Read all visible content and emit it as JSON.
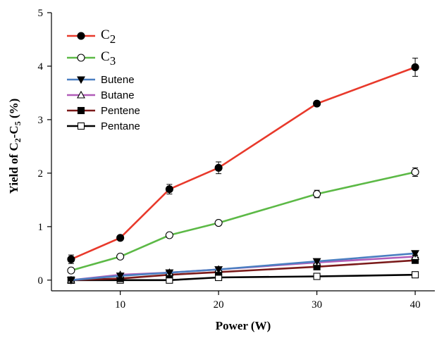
{
  "chart_data": {
    "type": "line",
    "xlabel": "Power (W)",
    "ylabel_parts": [
      "Yield of C",
      "2",
      "-C",
      "5",
      " (%)"
    ],
    "xlim": [
      3,
      42
    ],
    "ylim": [
      -0.2,
      5
    ],
    "xticks": [
      10,
      20,
      30,
      40
    ],
    "yticks": [
      0,
      1,
      2,
      3,
      4,
      5
    ],
    "grid": false,
    "legend_position": "top-left",
    "x": [
      5,
      10,
      15,
      20,
      30,
      40
    ],
    "series": [
      {
        "name": "C",
        "name_sub": "2",
        "color": "#e8392b",
        "marker": "circle-filled",
        "values": [
          0.39,
          0.79,
          1.7,
          2.1,
          3.3,
          3.98
        ],
        "errors": [
          0.08,
          0.04,
          0.09,
          0.11,
          0.04,
          0.17
        ]
      },
      {
        "name": "C",
        "name_sub": "3",
        "color": "#5cb946",
        "marker": "circle-open",
        "values": [
          0.18,
          0.44,
          0.84,
          1.07,
          1.61,
          2.02
        ],
        "errors": [
          0.02,
          0.03,
          0.03,
          0.04,
          0.07,
          0.08
        ]
      },
      {
        "name": "Butene",
        "name_sub": "",
        "color": "#4b7fc1",
        "marker": "triangle-down-filled",
        "values": [
          0.0,
          0.08,
          0.14,
          0.2,
          0.35,
          0.5
        ],
        "errors": [
          0,
          0,
          0,
          0,
          0,
          0.04
        ]
      },
      {
        "name": "Butane",
        "name_sub": "",
        "color": "#b05cb8",
        "marker": "triangle-up-open",
        "values": [
          0.0,
          0.1,
          0.14,
          0.2,
          0.33,
          0.44
        ],
        "errors": [
          0,
          0,
          0,
          0,
          0,
          0.03
        ]
      },
      {
        "name": "Pentene",
        "name_sub": "",
        "color": "#7a1a1a",
        "marker": "square-filled",
        "values": [
          0.0,
          0.03,
          0.1,
          0.15,
          0.25,
          0.37
        ],
        "errors": [
          0,
          0,
          0,
          0,
          0,
          0.03
        ]
      },
      {
        "name": "Pentane",
        "name_sub": "",
        "color": "#000000",
        "marker": "square-open",
        "values": [
          0.0,
          0.0,
          0.0,
          0.05,
          0.07,
          0.1
        ],
        "errors": [
          0,
          0,
          0,
          0,
          0,
          0
        ]
      }
    ]
  }
}
